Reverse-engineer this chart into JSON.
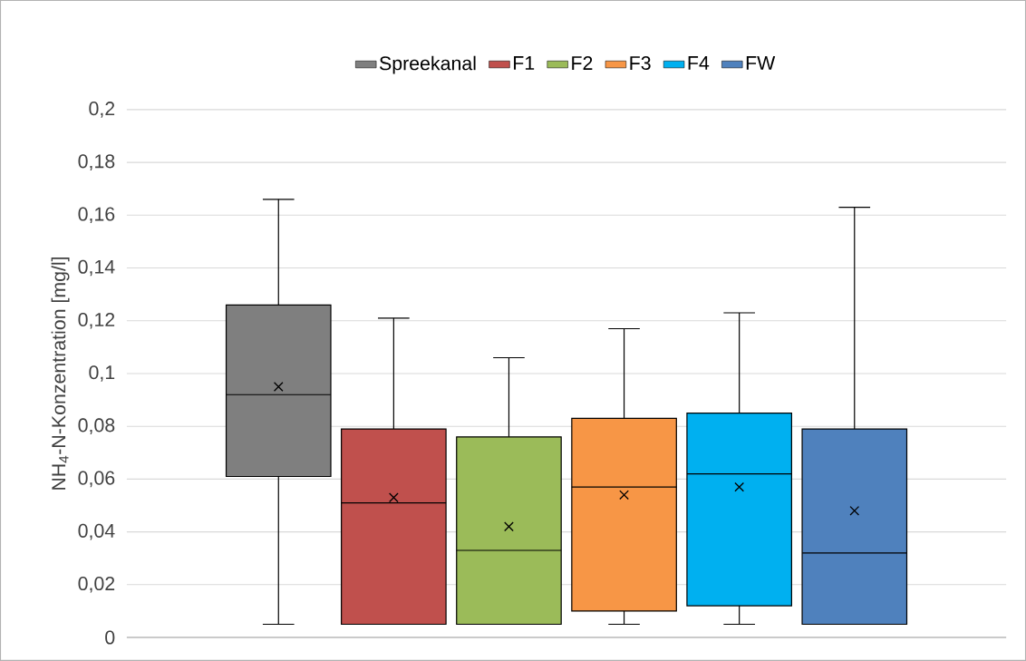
{
  "chart_data": {
    "type": "box",
    "ylabel": "NH$_{4}$-N-Konzentration  [mg/l]",
    "categories": [
      null
    ],
    "series": [
      {
        "name": "Spreekanal",
        "color": "#7f7f7f",
        "boxes": [
          {
            "low": 0.005,
            "q1": 0.061,
            "median": 0.092,
            "q3": 0.126,
            "high": 0.166,
            "mean": 0.095
          }
        ]
      },
      {
        "name": "F1",
        "color": "#c0504d",
        "boxes": [
          {
            "low": 0.005,
            "q1": 0.005,
            "median": 0.051,
            "q3": 0.079,
            "high": 0.121,
            "mean": 0.053
          }
        ]
      },
      {
        "name": "F2",
        "color": "#9bbb59",
        "boxes": [
          {
            "low": 0.005,
            "q1": 0.005,
            "median": 0.033,
            "q3": 0.076,
            "high": 0.106,
            "mean": 0.042
          }
        ]
      },
      {
        "name": "F3",
        "color": "#f79646",
        "boxes": [
          {
            "low": 0.005,
            "q1": 0.01,
            "median": 0.057,
            "q3": 0.083,
            "high": 0.117,
            "mean": 0.054
          }
        ]
      },
      {
        "name": "F4",
        "color": "#00b0f0",
        "boxes": [
          {
            "low": 0.005,
            "q1": 0.012,
            "median": 0.062,
            "q3": 0.085,
            "high": 0.123,
            "mean": 0.057
          }
        ]
      },
      {
        "name": "FW",
        "color": "#4f81bd",
        "boxes": [
          {
            "low": 0.005,
            "q1": 0.005,
            "median": 0.032,
            "q3": 0.079,
            "high": 0.163,
            "mean": 0.048
          }
        ]
      }
    ],
    "ylim": [
      0,
      0.2
    ],
    "yticks": [
      {
        "value": 0,
        "label": "0"
      },
      {
        "value": 0.02,
        "label": "0,02"
      },
      {
        "value": 0.04,
        "label": "0,04"
      },
      {
        "value": 0.06,
        "label": "0,06"
      },
      {
        "value": 0.08,
        "label": "0,08"
      },
      {
        "value": 0.1,
        "label": "0,1"
      },
      {
        "value": 0.12,
        "label": "0,12"
      },
      {
        "value": 0.14,
        "label": "0,14"
      },
      {
        "value": 0.16,
        "label": "0,16"
      },
      {
        "value": 0.18,
        "label": "0,18"
      },
      {
        "value": 0.2,
        "label": "0,2"
      }
    ],
    "grid": "y",
    "legend": "top",
    "marker": "cross"
  }
}
